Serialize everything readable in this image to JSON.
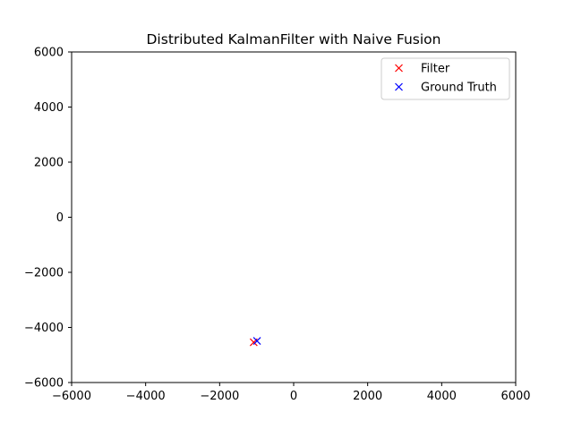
{
  "chart_data": {
    "type": "scatter",
    "title": "Distributed KalmanFilter with Naive Fusion",
    "xlabel": "",
    "ylabel": "",
    "xlim": [
      -6000,
      6000
    ],
    "ylim": [
      -6000,
      6000
    ],
    "xticks": [
      -6000,
      -4000,
      -2000,
      0,
      2000,
      4000,
      6000
    ],
    "yticks": [
      6000,
      4000,
      2000,
      0,
      -2000,
      -4000,
      -6000
    ],
    "xtick_labels": [
      "−6000",
      "−4000",
      "−2000",
      "0",
      "2000",
      "4000",
      "6000"
    ],
    "ytick_labels": [
      "6000",
      "4000",
      "2000",
      "0",
      "−2000",
      "−4000",
      "−6000"
    ],
    "grid": false,
    "legend_position": "top-right",
    "marker": "x",
    "series": [
      {
        "name": "Filter",
        "color": "#ff0000",
        "x": [
          -1080
        ],
        "y": [
          -4540
        ]
      },
      {
        "name": "Ground Truth",
        "color": "#0000ff",
        "x": [
          -990
        ],
        "y": [
          -4490
        ]
      }
    ]
  }
}
